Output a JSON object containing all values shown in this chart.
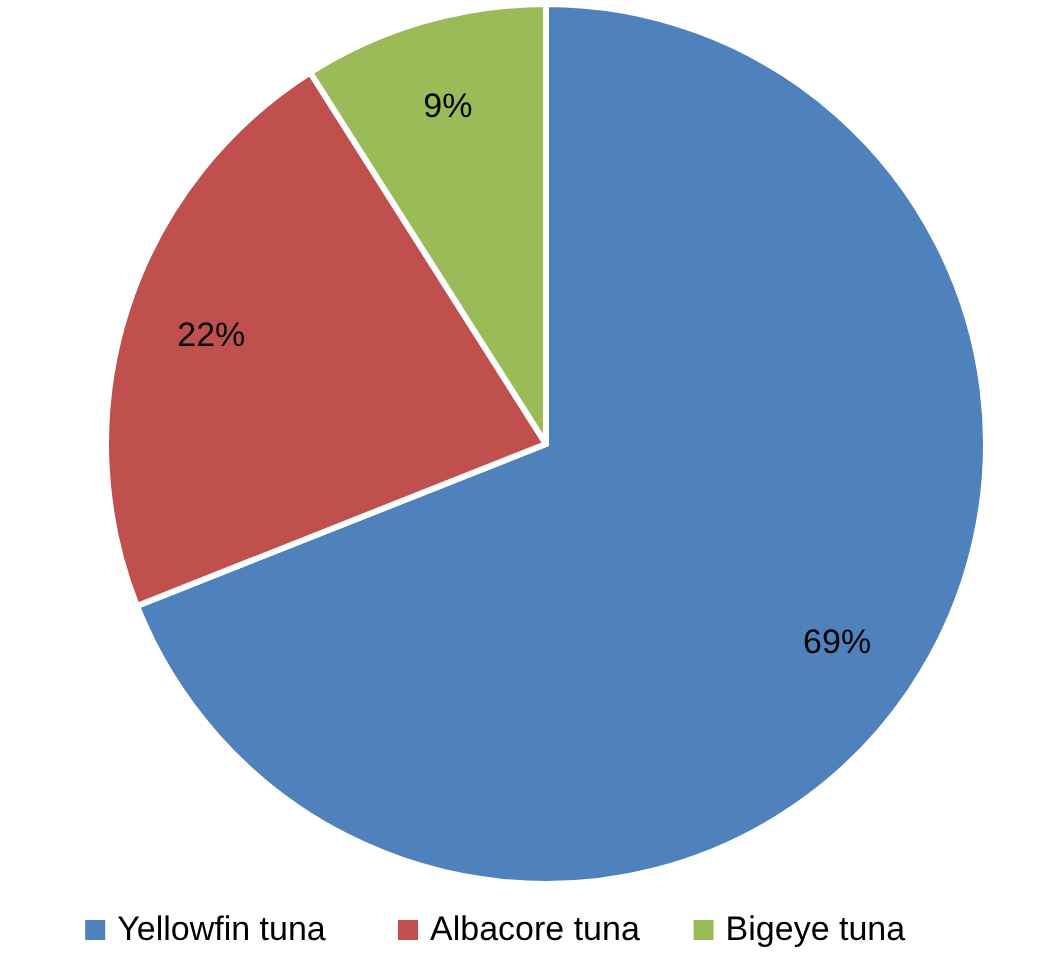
{
  "chart_data": {
    "type": "pie",
    "categories": [
      "Yellowfin tuna",
      "Albacore tuna",
      "Bigeye tuna"
    ],
    "values": [
      69,
      22,
      9
    ],
    "colors": [
      "#4f81bd",
      "#c0504d",
      "#9bbb59"
    ],
    "value_labels": [
      "69%",
      "22%",
      "9%"
    ],
    "legend": "bottom"
  }
}
